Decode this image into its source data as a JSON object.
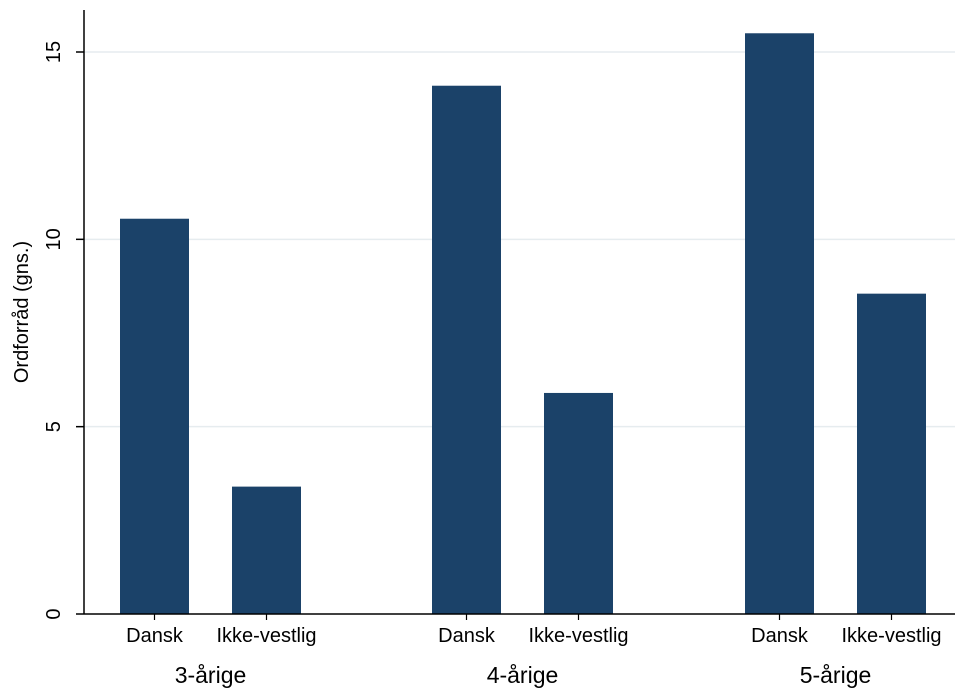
{
  "chart_data": {
    "type": "bar",
    "ylabel": "Ordforråd (gns.)",
    "xlabel": "",
    "ylim": [
      0,
      16
    ],
    "yticks": [
      0,
      5,
      10,
      15
    ],
    "grid": true,
    "bar_color": "#1b4269",
    "grid_color": "#e6ecef",
    "groups": [
      {
        "label": "3-årige",
        "bars": [
          {
            "category": "Dansk",
            "value": 10.55
          },
          {
            "category": "Ikke-vestlig",
            "value": 3.4
          }
        ]
      },
      {
        "label": "4-årige",
        "bars": [
          {
            "category": "Dansk",
            "value": 14.1
          },
          {
            "category": "Ikke-vestlig",
            "value": 5.9
          }
        ]
      },
      {
        "label": "5-årige",
        "bars": [
          {
            "category": "Dansk",
            "value": 15.5
          },
          {
            "category": "Ikke-vestlig",
            "value": 8.55
          }
        ]
      }
    ]
  }
}
